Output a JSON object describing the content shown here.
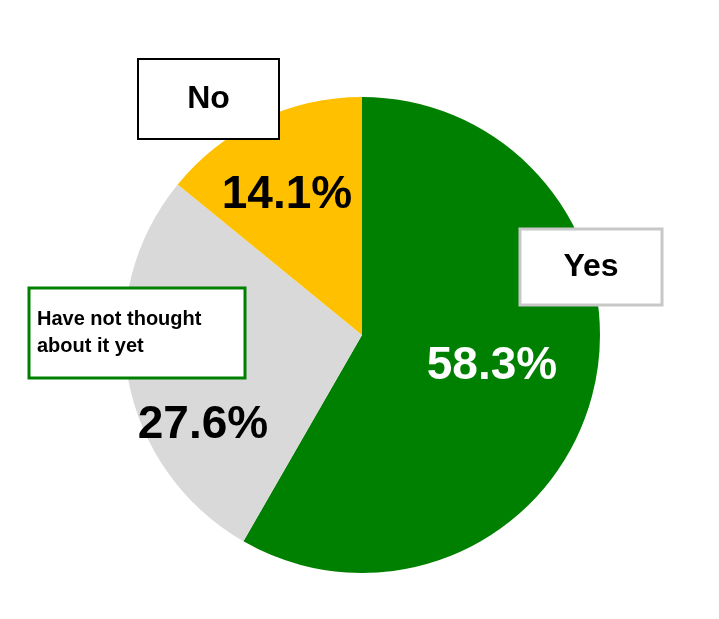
{
  "chart_data": {
    "type": "pie",
    "categories": [
      "Yes",
      "Have not thought about it yet",
      "No"
    ],
    "values": [
      58.3,
      27.6,
      14.1
    ],
    "value_labels": [
      "58.3%",
      "27.6%",
      "14.1%"
    ],
    "colors": [
      "#008000",
      "#D9D9D9",
      "#FFC000"
    ],
    "data_labels": true,
    "legend": false
  }
}
